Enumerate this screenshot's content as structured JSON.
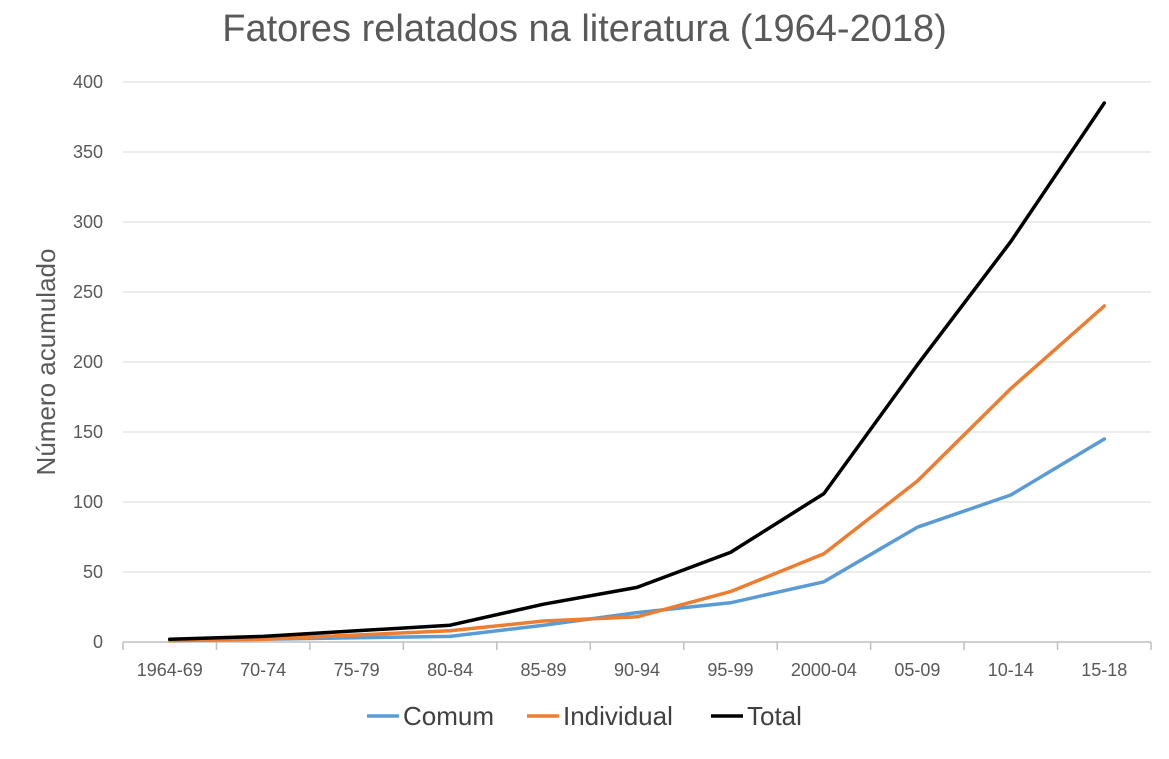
{
  "chart_data": {
    "type": "line",
    "title": "Fatores relatados na literatura (1964-2018)",
    "xlabel": "",
    "ylabel": "Número acumulado",
    "categories": [
      "1964-69",
      "70-74",
      "75-79",
      "80-84",
      "85-89",
      "90-94",
      "95-99",
      "2000-04",
      "05-09",
      "10-14",
      "15-18"
    ],
    "ylim": [
      0,
      400
    ],
    "yticks": [
      0,
      50,
      100,
      150,
      200,
      250,
      300,
      350,
      400
    ],
    "grid": "horizontal",
    "legend": "bottom",
    "series": [
      {
        "name": "Comum",
        "color": "#5b9bd5",
        "values": [
          1,
          2,
          3,
          4,
          12,
          21,
          28,
          43,
          82,
          105,
          145
        ]
      },
      {
        "name": "Individual",
        "color": "#ed7d31",
        "values": [
          1,
          2,
          5,
          8,
          15,
          18,
          36,
          63,
          115,
          181,
          240
        ]
      },
      {
        "name": "Total",
        "color": "#000000",
        "values": [
          2,
          4,
          8,
          12,
          27,
          39,
          64,
          106,
          198,
          286,
          385
        ]
      }
    ]
  }
}
